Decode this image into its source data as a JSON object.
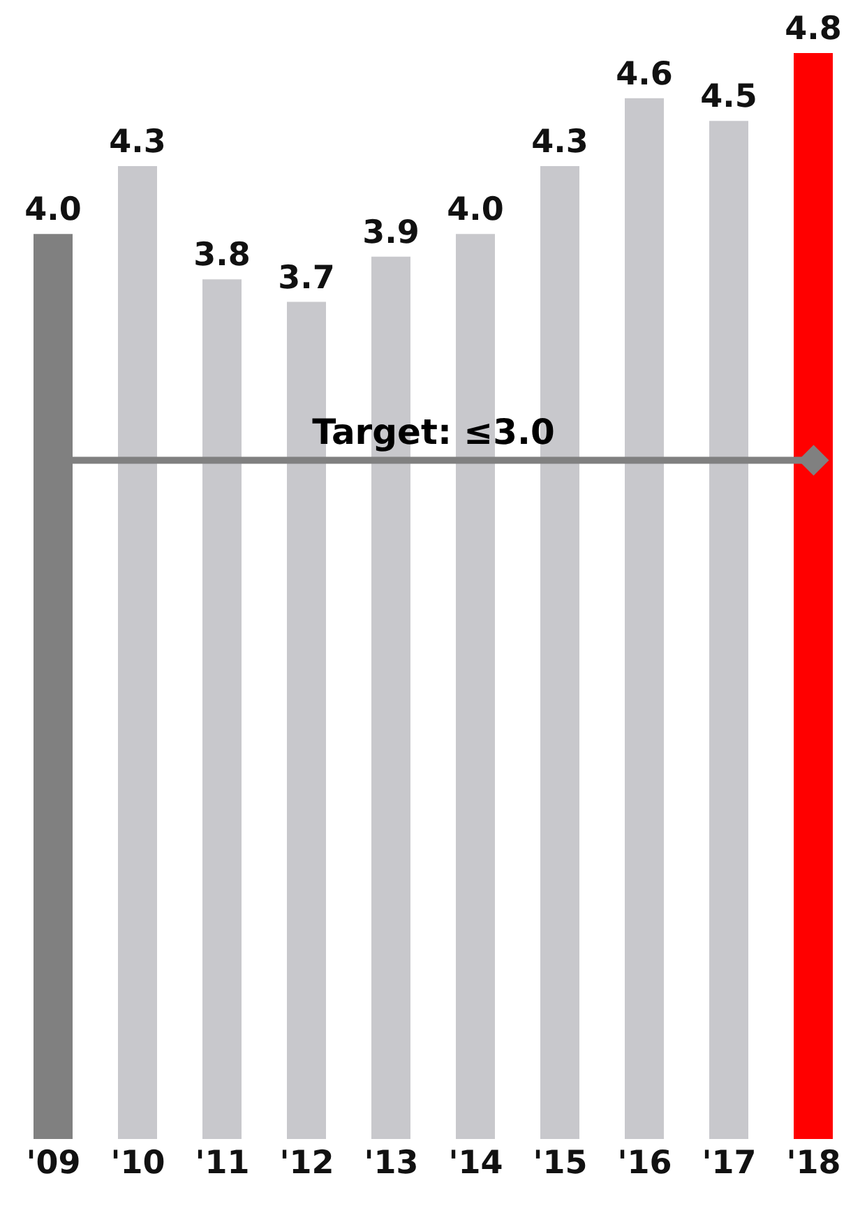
{
  "chart_data": {
    "type": "bar",
    "categories": [
      "'09",
      "'10",
      "'11",
      "'12",
      "'13",
      "'14",
      "'15",
      "'16",
      "'17",
      "'18"
    ],
    "values": [
      4.0,
      4.3,
      3.8,
      3.7,
      3.9,
      4.0,
      4.3,
      4.6,
      4.5,
      4.8
    ],
    "colors": [
      "#808080",
      "#c8c8cc",
      "#c8c8cc",
      "#c8c8cc",
      "#c8c8cc",
      "#c8c8cc",
      "#c8c8cc",
      "#c8c8cc",
      "#c8c8cc",
      "#ff0000"
    ],
    "value_labels": [
      "4.0",
      "4.3",
      "3.8",
      "3.7",
      "3.9",
      "4.0",
      "4.3",
      "4.6",
      "4.5",
      "4.8"
    ],
    "grid": false,
    "legend": false,
    "ref_lines": [
      {
        "axis": "y",
        "value": 3.0,
        "label": "Target: ≤3.0",
        "color": "#808080"
      }
    ]
  }
}
